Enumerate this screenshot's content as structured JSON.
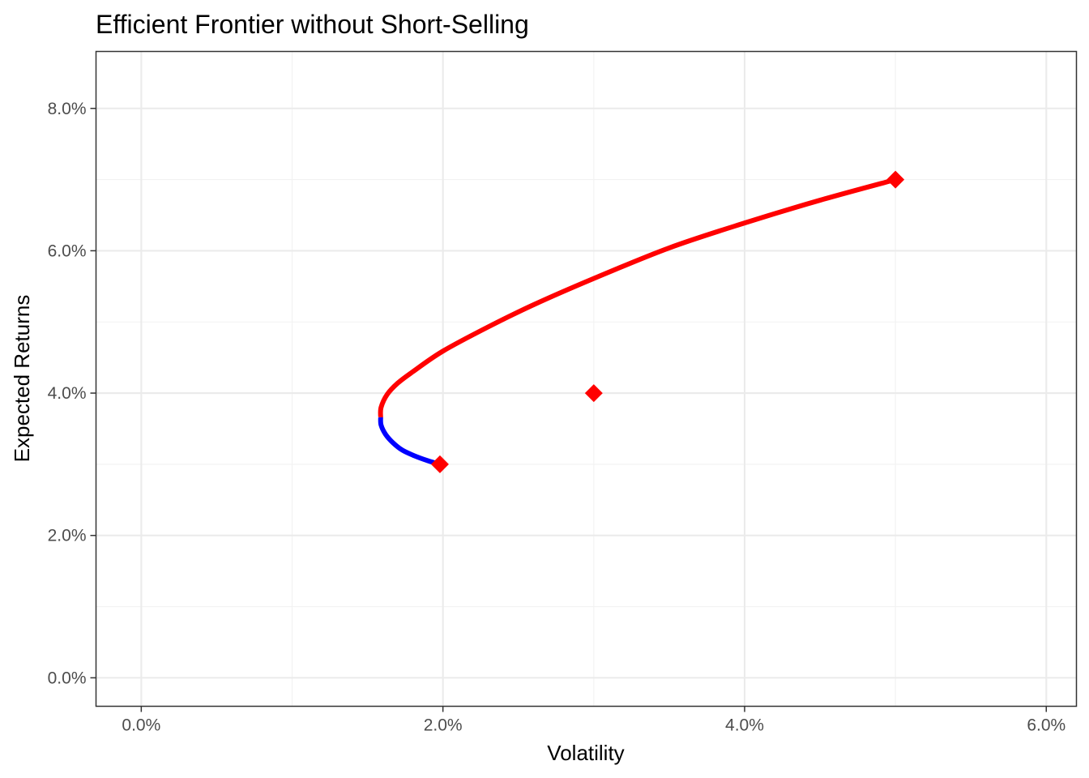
{
  "chart_data": {
    "type": "line",
    "title": "Efficient Frontier without Short-Selling",
    "xlabel": "Volatility",
    "ylabel": "Expected Returns",
    "xlim": [
      -0.003,
      0.062
    ],
    "ylim": [
      -0.004,
      0.088
    ],
    "x_ticks": [
      0.0,
      0.02,
      0.04,
      0.06
    ],
    "x_tick_labels": [
      "0.0%",
      "2.0%",
      "4.0%",
      "6.0%"
    ],
    "y_ticks": [
      0.0,
      0.02,
      0.04,
      0.06,
      0.08
    ],
    "y_tick_labels": [
      "0.0%",
      "2.0%",
      "4.0%",
      "6.0%",
      "8.0%"
    ],
    "grid": true,
    "series": [
      {
        "color": "#0000ff",
        "x": [
          0.0198,
          0.019,
          0.0181,
          0.0173,
          0.0167,
          0.0162,
          0.0159,
          0.01587
        ],
        "y": [
          0.03,
          0.0305,
          0.0312,
          0.032,
          0.033,
          0.0342,
          0.0355,
          0.0366
        ]
      },
      {
        "color": "#ff0000",
        "x": [
          0.01587,
          0.0159,
          0.0163,
          0.017,
          0.018,
          0.02,
          0.023,
          0.026,
          0.03,
          0.035,
          0.04,
          0.045,
          0.05
        ],
        "y": [
          0.0366,
          0.038,
          0.0398,
          0.0414,
          0.043,
          0.0459,
          0.0493,
          0.0524,
          0.0561,
          0.0604,
          0.0639,
          0.0671,
          0.07
        ]
      }
    ],
    "points": {
      "color": "#ff0000",
      "shape": "diamond",
      "x": [
        0.0198,
        0.03,
        0.05
      ],
      "y": [
        0.03,
        0.04,
        0.07
      ]
    }
  }
}
